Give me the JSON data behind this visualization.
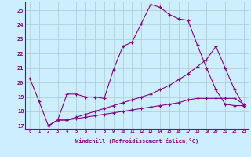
{
  "xlabel": "Windchill (Refroidissement éolien,°C)",
  "bg_color": "#cceeff",
  "grid_color": "#aacccc",
  "line_color": "#880088",
  "xlim": [
    -0.5,
    23.5
  ],
  "ylim": [
    16.8,
    25.6
  ],
  "yticks": [
    17,
    18,
    19,
    20,
    21,
    22,
    23,
    24,
    25
  ],
  "xticks": [
    0,
    1,
    2,
    3,
    4,
    5,
    6,
    7,
    8,
    9,
    10,
    11,
    12,
    13,
    14,
    15,
    16,
    17,
    18,
    19,
    20,
    21,
    22,
    23
  ],
  "line1_x": [
    0,
    1,
    2,
    3,
    4,
    5,
    6,
    7,
    8,
    9,
    10,
    11,
    12,
    13,
    14,
    15,
    16,
    17,
    18,
    19,
    20,
    21,
    22,
    23
  ],
  "line1_y": [
    20.3,
    18.7,
    17.0,
    17.4,
    19.2,
    19.2,
    19.0,
    19.0,
    18.9,
    20.9,
    22.5,
    22.8,
    24.1,
    25.4,
    25.2,
    24.7,
    24.4,
    24.3,
    22.6,
    21.0,
    19.5,
    18.5,
    18.4,
    18.4
  ],
  "line2_x": [
    2,
    3,
    4,
    5,
    6,
    7,
    8,
    9,
    10,
    11,
    12,
    13,
    14,
    15,
    16,
    17,
    18,
    19,
    20,
    21,
    22,
    23
  ],
  "line2_y": [
    17.0,
    17.4,
    17.4,
    17.6,
    17.8,
    18.0,
    18.2,
    18.4,
    18.6,
    18.8,
    19.0,
    19.2,
    19.5,
    19.8,
    20.2,
    20.6,
    21.1,
    21.6,
    22.5,
    21.0,
    19.5,
    18.4
  ],
  "line3_x": [
    2,
    3,
    4,
    5,
    6,
    7,
    8,
    9,
    10,
    11,
    12,
    13,
    14,
    15,
    16,
    17,
    18,
    19,
    20,
    21,
    22,
    23
  ],
  "line3_y": [
    17.0,
    17.4,
    17.4,
    17.5,
    17.6,
    17.7,
    17.8,
    17.9,
    18.0,
    18.1,
    18.2,
    18.3,
    18.4,
    18.5,
    18.6,
    18.8,
    18.9,
    18.9,
    18.9,
    18.9,
    18.9,
    18.5
  ]
}
